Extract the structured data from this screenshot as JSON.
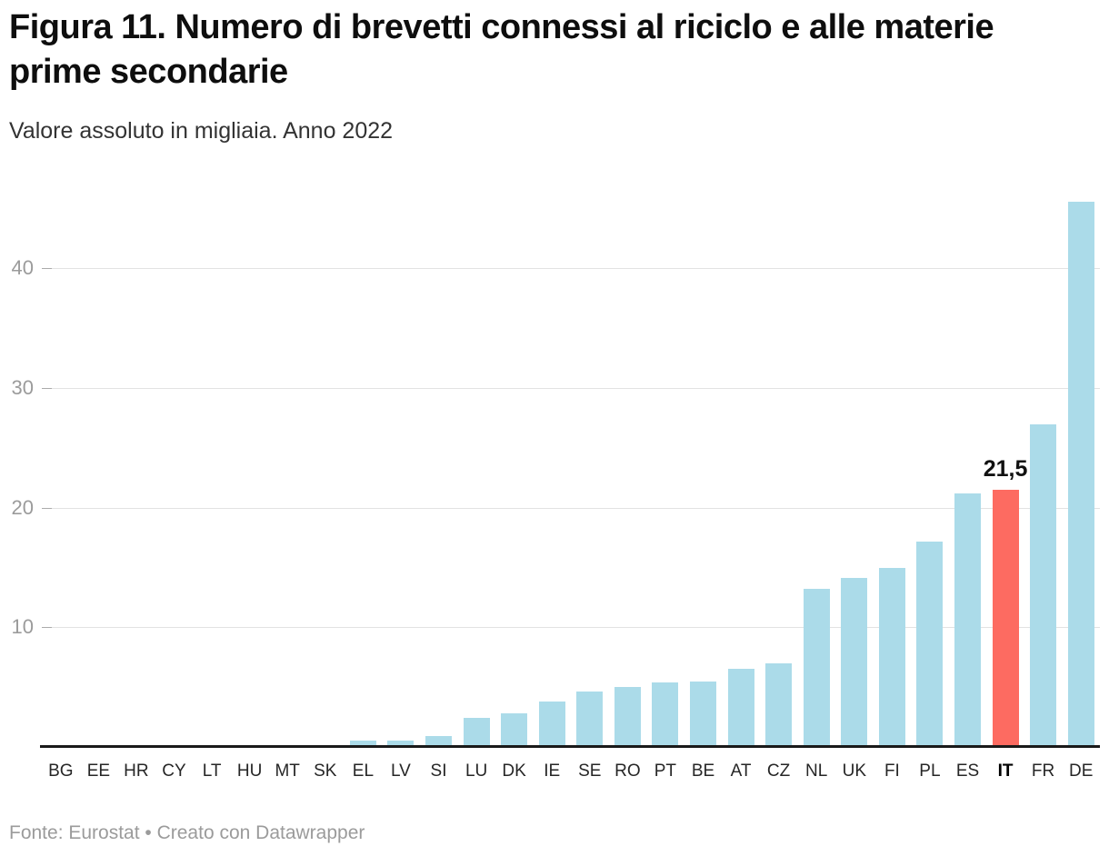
{
  "header": {
    "title": "Figura 11. Numero di brevetti connessi al riciclo e alle materie prime secondarie",
    "subtitle": "Valore assoluto in migliaia. Anno 2022"
  },
  "footer": {
    "text": "Fonte: Eurostat • Creato con Datawrapper"
  },
  "colors": {
    "bar": "#abdbe9",
    "highlight": "#fd6b61",
    "gridline": "#e2e2e2",
    "axis": "#1a1a1a",
    "tick_text": "#9b9b9b"
  },
  "chart_data": {
    "type": "bar",
    "title": "Figura 11. Numero di brevetti connessi al riciclo e alle materie prime secondarie",
    "subtitle": "Valore assoluto in migliaia. Anno 2022",
    "xlabel": "",
    "ylabel": "",
    "categories": [
      "BG",
      "EE",
      "HR",
      "CY",
      "LT",
      "HU",
      "MT",
      "SK",
      "EL",
      "LV",
      "SI",
      "LU",
      "DK",
      "IE",
      "SE",
      "RO",
      "PT",
      "BE",
      "AT",
      "CZ",
      "NL",
      "UK",
      "FI",
      "PL",
      "ES",
      "IT",
      "FR",
      "DE"
    ],
    "values": [
      0,
      0,
      0,
      0,
      0,
      0,
      0,
      0,
      0.5,
      0.5,
      0.9,
      2.4,
      2.8,
      3.8,
      4.6,
      5.0,
      5.4,
      5.5,
      6.5,
      7.0,
      13.2,
      14.1,
      15.0,
      17.2,
      21.2,
      21.5,
      27.0,
      45.6
    ],
    "yticks": [
      10,
      20,
      30,
      40
    ],
    "ylim": [
      0,
      46.5
    ],
    "grid": true,
    "legend_position": "none",
    "highlight": {
      "category": "IT",
      "value_label": "21,5"
    }
  }
}
